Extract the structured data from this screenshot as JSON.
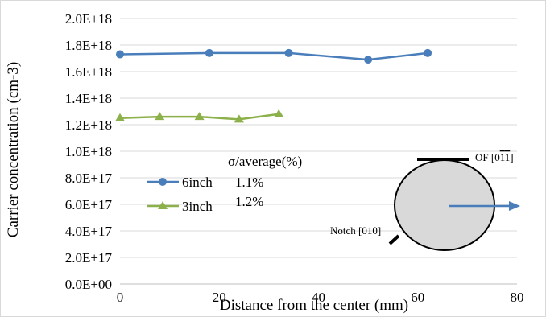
{
  "chart_data": {
    "type": "line",
    "xlabel": "Distance from the center (mm)",
    "ylabel": "Carrier concentration (cm-3)",
    "xlim": [
      0,
      80
    ],
    "ylim": [
      0,
      2e+18
    ],
    "xticks": [
      "0",
      "20",
      "40",
      "60",
      "80"
    ],
    "yticks": [
      "0.0E+00",
      "2.0E+17",
      "4.0E+17",
      "6.0E+17",
      "8.0E+17",
      "1.0E+18",
      "1.2E+18",
      "1.4E+18",
      "1.6E+18",
      "1.8E+18",
      "2.0E+18"
    ],
    "grid": "horizontal",
    "legend_position": "center-left",
    "legend_header": "σ/average(%)",
    "series": [
      {
        "name": "6inch",
        "stat": "1.1%",
        "color": "#4a7ebb",
        "marker": "circle",
        "x": [
          0,
          18,
          34,
          50,
          62
        ],
        "y": [
          1.73e+18,
          1.74e+18,
          1.74e+18,
          1.69e+18,
          1.74e+18
        ]
      },
      {
        "name": "3inch",
        "stat": "1.2%",
        "color": "#8cb04a",
        "marker": "triangle",
        "x": [
          0,
          8,
          16,
          24,
          32
        ],
        "y": [
          1.25e+18,
          1.26e+18,
          1.26e+18,
          1.24e+18,
          1.28e+18
        ]
      }
    ],
    "annotations": {
      "of_label": "OF [0",
      "of_bar1": "1",
      "of_bar2": "1",
      "of_close": "]",
      "notch_label": "Notch [010]"
    }
  }
}
